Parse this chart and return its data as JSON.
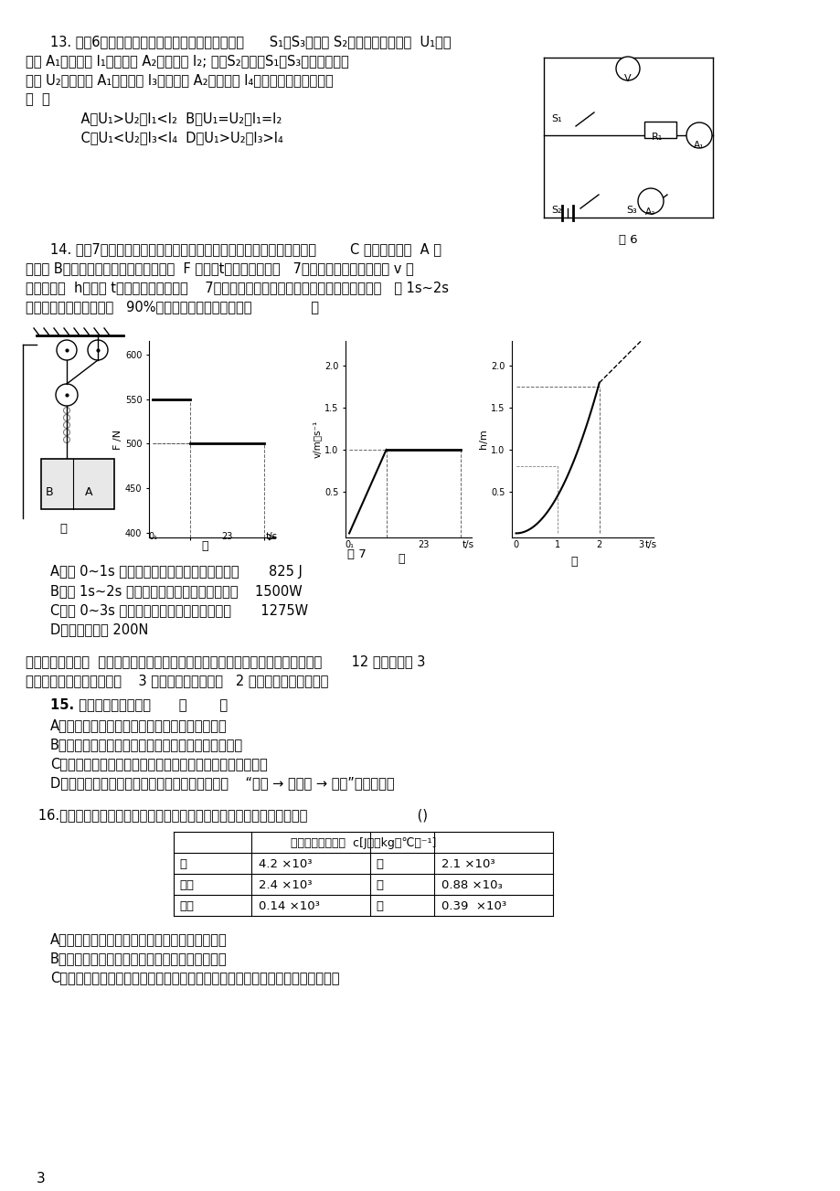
{
  "page_bg": "#ffffff",
  "page_num": "3",
  "q13_lines": [
    "13. 在图6所示电路中，电源两端的电压恒定。断开      S₁、S₃，闭合 S₂，电压表的示数为  U₁，电",
    "流表 A₁的示数为 I₁，电流表 A₂的示数为 I₂; 断开S₂，闭合S₁、S₃，电压表的示",
    "数为 U₂，电流表 A₁的示数为 I₃，电流表 A₂的示数为 I₄。下列说法中正确的是",
    "（  ）",
    "    A．U₁>U₂，I₁<I₂  B．U₁=U₂，I₁=I₂",
    "    C．U₁<U₂，I₃<I₄  D．U₁>U₂，I₃>I₄"
  ],
  "q14_lines": [
    "14. 如图7甲所示，用由一个动滑轮和两个定滑组成的滑轮组，提升吊篮        C 及其中的重物  A 和",
    "电动机 B。启动电动机，它所提供的拉力  F 随时间t的变化关系如图   7乙所示，吊篮上升的速度 v 和",
    "上升的高度  h随时间 t变化的关系分别如图    7丙和丁所示。若一切摩擦和绳重均可忽略不计，   在 1s~2s",
    "内，滑轮组的机械效率为   90%，则下列说法中正确的是（              ）"
  ],
  "q14_options": [
    "A．在 0~1s 内，电动机提供的拉力所做的功为       825 J",
    "B．在 1s~2s 内，电动机提供的拉力的功率为    1500W",
    "C．在 0~3s 内，电动机提供的拉力的功率为       1275W",
    "D．动滑轮重为 200N"
  ],
  "section2_title": "二、多项选择题（  下列各小题均有四个选项，其中符合题意的选项均多于一个。共       12 分，每小题 3",
  "section2_subtitle": "分。每小题选项全选对的得    3 分，选对但不全的得   2 分，有错选的不得分）",
  "q15_title": "15. 下列说法中正确的是      （       ）",
  "q15_options": [
    "A．只要电路中有电源存在，电路中就一定有电流",
    "B．电路中负电荷发生定向移动时，电路中一定有电流",
    "C．金属导体中自由电子定向移动的方向一定与电流方向相同",
    "D．在有电流通过的电路中，电流在电源外部沿着    “正极 → 用电器 → 负极”的方向流动"
  ],
  "q16_title": "   16.小明根据下表所提供的几种物质的比热容得出以下结论，其中正确的是                          ()",
  "table_header": "几种物质的比热容  c[J．（kg．℃）⁻¹]",
  "table_rows": [
    [
      "水",
      "4.2 ×10³",
      "冰",
      "2.1 ×10³"
    ],
    [
      "酒精",
      "2.4 ×10³",
      "铝",
      "0.88 ×10₃"
    ],
    [
      "水银",
      "0.14 ×10³",
      "铜",
      "0.39  ×10³"
    ]
  ],
  "q16_options": [
    "A．固体物质的比热容一定小于液体物质的比热容",
    "B．同种物质的比热容会因物质的状态不同而改变",
    "C．质量相等的水和酒精，吸收相等的热量后（均未沸腾），酒精的温度变化较大"
  ]
}
